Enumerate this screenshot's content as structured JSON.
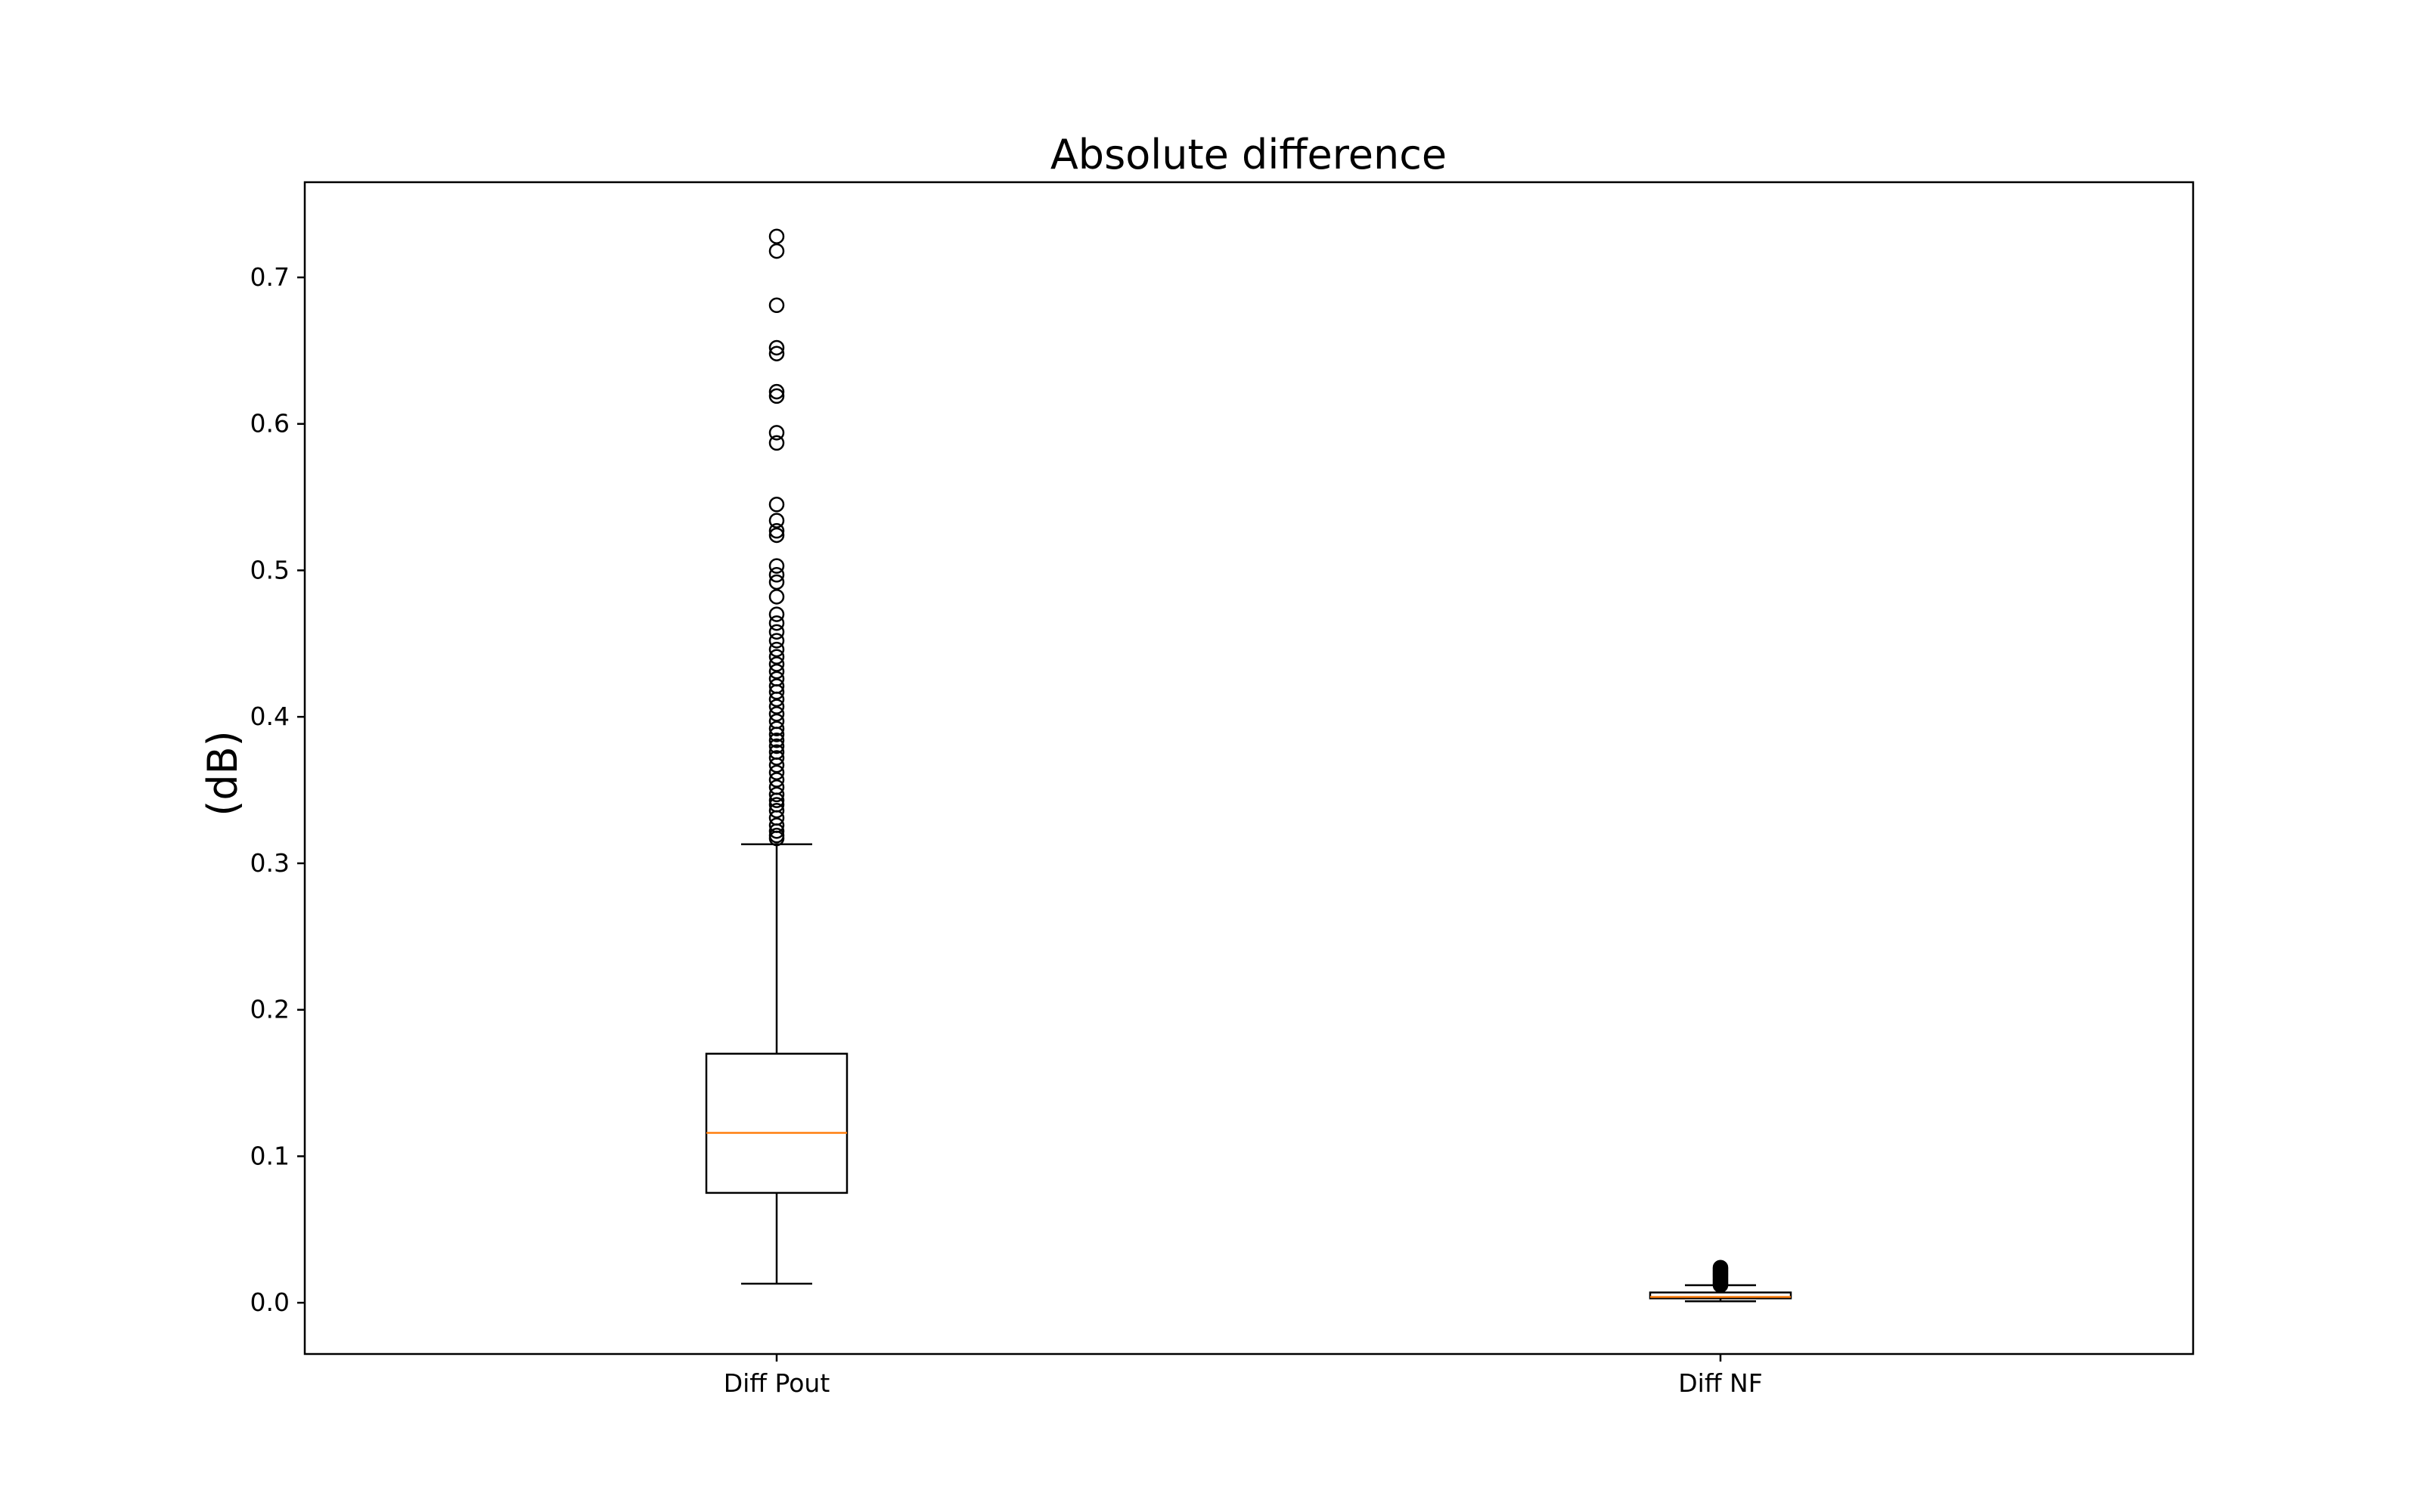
{
  "chart_data": {
    "type": "box",
    "title": "Absolute difference",
    "xlabel": "",
    "ylabel": "(dB)",
    "ylim": [
      -0.035,
      0.765
    ],
    "yticks": [
      0.0,
      0.1,
      0.2,
      0.3,
      0.4,
      0.5,
      0.6,
      0.7
    ],
    "ytick_labels": [
      "0.0",
      "0.1",
      "0.2",
      "0.3",
      "0.4",
      "0.5",
      "0.6",
      "0.7"
    ],
    "grid": false,
    "colors": {
      "box": "#000000",
      "median": "#ff7f0e",
      "background": "#ffffff"
    },
    "categories": [
      "Diff Pout",
      "Diff NF"
    ],
    "boxes": [
      {
        "label": "Diff Pout",
        "whisker_low": 0.013,
        "q1": 0.075,
        "median": 0.116,
        "q3": 0.17,
        "whisker_high": 0.313,
        "outliers": [
          0.317,
          0.319,
          0.322,
          0.326,
          0.331,
          0.336,
          0.34,
          0.343,
          0.347,
          0.352,
          0.357,
          0.362,
          0.367,
          0.372,
          0.376,
          0.38,
          0.384,
          0.388,
          0.392,
          0.397,
          0.402,
          0.407,
          0.412,
          0.417,
          0.421,
          0.426,
          0.431,
          0.436,
          0.441,
          0.446,
          0.452,
          0.458,
          0.464,
          0.47,
          0.482,
          0.492,
          0.497,
          0.503,
          0.524,
          0.527,
          0.534,
          0.545,
          0.587,
          0.594,
          0.619,
          0.622,
          0.648,
          0.652,
          0.681,
          0.718,
          0.728
        ]
      },
      {
        "label": "Diff NF",
        "whisker_low": 0.001,
        "q1": 0.003,
        "median": 0.004,
        "q3": 0.007,
        "whisker_high": 0.012,
        "outliers": [
          0.012,
          0.013,
          0.014,
          0.015,
          0.016,
          0.017,
          0.018,
          0.019,
          0.02,
          0.021,
          0.022,
          0.023,
          0.024
        ]
      }
    ]
  }
}
